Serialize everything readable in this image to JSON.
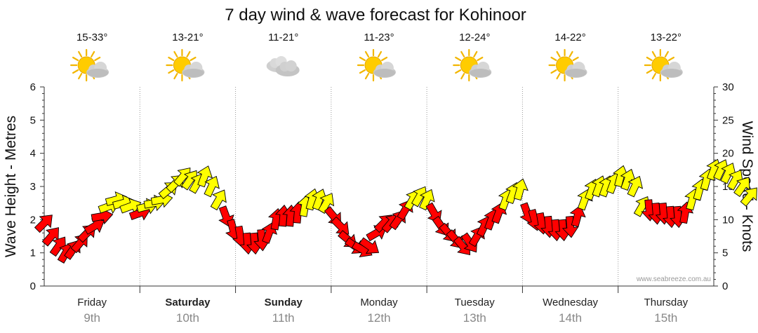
{
  "chart_data": {
    "type": "line",
    "title": "7 day wind & wave forecast for Kohinoor",
    "ylabel_left": "Wave Height - Metres",
    "ylabel_right": "Wind Speed - Knots",
    "ylim_left": [
      0,
      6
    ],
    "ylim_right": [
      0,
      30
    ],
    "yticks_left": [
      "0",
      "1",
      "2",
      "3",
      "4",
      "5",
      "6"
    ],
    "yticks_right": [
      "0",
      "5",
      "10",
      "15",
      "20",
      "25",
      "30"
    ],
    "credit": "www.seabreeze.com.au",
    "days": [
      {
        "name": "Friday",
        "date": "9th",
        "bold": false,
        "temp": "15-33°",
        "icon": "sun-cloud-icon"
      },
      {
        "name": "Saturday",
        "date": "10th",
        "bold": true,
        "temp": "13-21°",
        "icon": "sun-cloud-icon"
      },
      {
        "name": "Sunday",
        "date": "11th",
        "bold": true,
        "temp": "11-21°",
        "icon": "cloud-icon"
      },
      {
        "name": "Monday",
        "date": "12th",
        "bold": false,
        "temp": "11-23°",
        "icon": "sun-cloud-icon"
      },
      {
        "name": "Tuesday",
        "date": "13th",
        "bold": false,
        "temp": "12-24°",
        "icon": "sun-cloud-icon"
      },
      {
        "name": "Wednesday",
        "date": "14th",
        "bold": false,
        "temp": "14-22°",
        "icon": "sun-cloud-icon"
      },
      {
        "name": "Thursday",
        "date": "15th",
        "bold": false,
        "temp": "13-22°",
        "icon": "sun-cloud-icon"
      }
    ],
    "series": [
      {
        "name": "Wind speed (knots)",
        "colors": {
          "low": "#ff0000",
          "high": "#ffff00",
          "threshold_knots": 12
        },
        "points": [
          {
            "t": 0.0,
            "knots": 9.5,
            "dir": 45
          },
          {
            "t": 0.15,
            "knots": 7.5,
            "dir": 40
          },
          {
            "t": 0.3,
            "knots": 6.0,
            "dir": 35
          },
          {
            "t": 0.45,
            "knots": 5.0,
            "dir": 30
          },
          {
            "t": 0.6,
            "knots": 5.5,
            "dir": 35
          },
          {
            "t": 0.75,
            "knots": 6.5,
            "dir": 40
          },
          {
            "t": 0.9,
            "knots": 8.0,
            "dir": 45
          },
          {
            "t": 1.05,
            "knots": 9.0,
            "dir": 60
          },
          {
            "t": 1.2,
            "knots": 10.5,
            "dir": 80
          },
          {
            "t": 1.35,
            "knots": 12.0,
            "dir": 70
          },
          {
            "t": 1.5,
            "knots": 13.0,
            "dir": 75
          },
          {
            "t": 1.65,
            "knots": 12.5,
            "dir": 75
          },
          {
            "t": 1.8,
            "knots": 12.0,
            "dir": 70
          },
          {
            "t": 2.0,
            "knots": 11.0,
            "dir": 70
          },
          {
            "t": 2.15,
            "knots": 12.0,
            "dir": 75
          },
          {
            "t": 2.3,
            "knots": 12.5,
            "dir": 80
          },
          {
            "t": 2.45,
            "knots": 13.0,
            "dir": 80
          },
          {
            "t": 2.6,
            "knots": 14.5,
            "dir": 50
          },
          {
            "t": 2.75,
            "knots": 15.5,
            "dir": 45
          },
          {
            "t": 2.9,
            "knots": 16.5,
            "dir": 40
          },
          {
            "t": 3.05,
            "knots": 16.0,
            "dir": 35
          },
          {
            "t": 3.2,
            "knots": 15.5,
            "dir": 30
          },
          {
            "t": 3.35,
            "knots": 16.5,
            "dir": 20
          },
          {
            "t": 3.5,
            "knots": 15.0,
            "dir": 25
          },
          {
            "t": 3.65,
            "knots": 13.0,
            "dir": 30
          },
          {
            "t": 3.8,
            "knots": 10.5,
            "dir": 160
          },
          {
            "t": 3.95,
            "knots": 8.5,
            "dir": 165
          },
          {
            "t": 4.1,
            "knots": 7.5,
            "dir": 170
          },
          {
            "t": 4.25,
            "knots": 6.5,
            "dir": 175
          },
          {
            "t": 4.4,
            "knots": 6.5,
            "dir": 175
          },
          {
            "t": 4.55,
            "knots": 7.0,
            "dir": 175
          },
          {
            "t": 4.7,
            "knots": 8.0,
            "dir": 20
          },
          {
            "t": 4.85,
            "knots": 10.0,
            "dir": 10
          },
          {
            "t": 5.0,
            "knots": 10.5,
            "dir": 5
          },
          {
            "t": 5.15,
            "knots": 10.5,
            "dir": 5
          },
          {
            "t": 5.3,
            "knots": 11.0,
            "dir": 5
          },
          {
            "t": 5.45,
            "knots": 12.0,
            "dir": 10
          },
          {
            "t": 5.6,
            "knots": 13.0,
            "dir": 15
          },
          {
            "t": 5.75,
            "knots": 13.0,
            "dir": 20
          },
          {
            "t": 5.9,
            "knots": 12.5,
            "dir": 30
          },
          {
            "t": 6.05,
            "knots": 10.5,
            "dir": 140
          },
          {
            "t": 6.2,
            "knots": 9.0,
            "dir": 135
          },
          {
            "t": 6.35,
            "knots": 7.0,
            "dir": 130
          },
          {
            "t": 6.5,
            "knots": 6.0,
            "dir": 125
          },
          {
            "t": 6.65,
            "knots": 5.5,
            "dir": 120
          },
          {
            "t": 6.8,
            "knots": 6.0,
            "dir": 125
          },
          {
            "t": 6.95,
            "knots": 8.0,
            "dir": 60
          },
          {
            "t": 7.1,
            "knots": 9.5,
            "dir": 45
          },
          {
            "t": 7.25,
            "knots": 9.5,
            "dir": 40
          },
          {
            "t": 7.4,
            "knots": 10.0,
            "dir": 35
          },
          {
            "t": 7.55,
            "knots": 11.5,
            "dir": 30
          },
          {
            "t": 7.7,
            "knots": 13.0,
            "dir": 30
          },
          {
            "t": 7.85,
            "knots": 13.5,
            "dir": 30
          },
          {
            "t": 8.0,
            "knots": 13.0,
            "dir": 25
          },
          {
            "t": 8.15,
            "knots": 11.0,
            "dir": 150
          },
          {
            "t": 8.3,
            "knots": 9.0,
            "dir": 145
          },
          {
            "t": 8.45,
            "knots": 8.0,
            "dir": 140
          },
          {
            "t": 8.6,
            "knots": 7.0,
            "dir": 140
          },
          {
            "t": 8.75,
            "knots": 6.0,
            "dir": 140
          },
          {
            "t": 8.9,
            "knots": 6.5,
            "dir": 145
          },
          {
            "t": 9.05,
            "knots": 7.5,
            "dir": 30
          },
          {
            "t": 9.2,
            "knots": 9.0,
            "dir": 25
          },
          {
            "t": 9.35,
            "knots": 10.0,
            "dir": 20
          },
          {
            "t": 9.5,
            "knots": 11.0,
            "dir": 20
          },
          {
            "t": 9.65,
            "knots": 13.0,
            "dir": 20
          },
          {
            "t": 9.8,
            "knots": 14.0,
            "dir": 20
          },
          {
            "t": 9.95,
            "knots": 14.5,
            "dir": 15
          },
          {
            "t": 10.1,
            "knots": 11.0,
            "dir": 160
          },
          {
            "t": 10.25,
            "knots": 10.0,
            "dir": 165
          },
          {
            "t": 10.4,
            "knots": 9.5,
            "dir": 170
          },
          {
            "t": 10.55,
            "knots": 9.0,
            "dir": 175
          },
          {
            "t": 10.7,
            "knots": 8.5,
            "dir": 175
          },
          {
            "t": 10.85,
            "knots": 8.5,
            "dir": 175
          },
          {
            "t": 11.0,
            "knots": 9.0,
            "dir": 175
          },
          {
            "t": 11.15,
            "knots": 10.5,
            "dir": 15
          },
          {
            "t": 11.3,
            "knots": 13.0,
            "dir": 20
          },
          {
            "t": 11.45,
            "knots": 14.5,
            "dir": 20
          },
          {
            "t": 11.6,
            "knots": 15.0,
            "dir": 20
          },
          {
            "t": 11.75,
            "knots": 15.0,
            "dir": 20
          },
          {
            "t": 11.9,
            "knots": 15.5,
            "dir": 20
          },
          {
            "t": 12.05,
            "knots": 16.5,
            "dir": 15
          },
          {
            "t": 12.2,
            "knots": 16.0,
            "dir": 20
          },
          {
            "t": 12.35,
            "knots": 15.0,
            "dir": 25
          },
          {
            "t": 12.5,
            "knots": 12.0,
            "dir": 30
          },
          {
            "t": 12.65,
            "knots": 11.5,
            "dir": 175
          },
          {
            "t": 12.8,
            "knots": 11.0,
            "dir": 175
          },
          {
            "t": 12.95,
            "knots": 11.0,
            "dir": 175
          },
          {
            "t": 13.1,
            "knots": 10.5,
            "dir": 175
          },
          {
            "t": 13.25,
            "knots": 10.5,
            "dir": 175
          },
          {
            "t": 13.4,
            "knots": 11.0,
            "dir": 10
          },
          {
            "t": 13.55,
            "knots": 13.0,
            "dir": 15
          },
          {
            "t": 13.7,
            "knots": 14.5,
            "dir": 15
          },
          {
            "t": 13.85,
            "knots": 16.0,
            "dir": 15
          },
          {
            "t": 14.0,
            "knots": 17.5,
            "dir": 20
          },
          {
            "t": 14.15,
            "knots": 17.5,
            "dir": 25
          },
          {
            "t": 14.3,
            "knots": 17.0,
            "dir": 25
          },
          {
            "t": 14.45,
            "knots": 16.0,
            "dir": 30
          },
          {
            "t": 14.6,
            "knots": 15.0,
            "dir": 35
          },
          {
            "t": 14.75,
            "knots": 13.5,
            "dir": 40
          }
        ]
      }
    ]
  }
}
